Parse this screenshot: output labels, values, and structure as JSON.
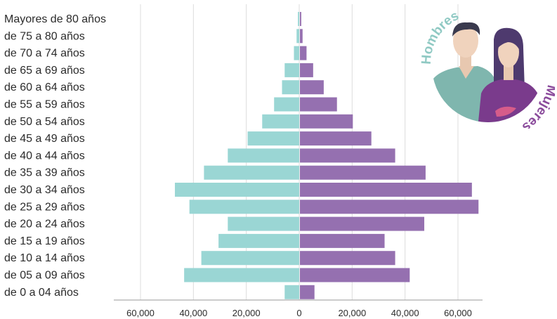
{
  "chart_data": {
    "type": "bar",
    "orientation": "horizontal",
    "layout": "population-pyramid",
    "categories": [
      "Mayores de 80 años",
      "de 75 a 80 años",
      "de 70 a 74 años",
      "de 65 a 69 años",
      "de 60 a 64 años",
      "de 55 a 59 años",
      "de 50 a 54 años",
      "de 45 a 49 años",
      "de 40 a 44 años",
      "de 35 a 39 años",
      "de 30 a 34 años",
      "de 25 a 29 años",
      "de 20 a 24 años",
      "de 15 a 19 años",
      "de 10 a 14 años",
      "de 05 a 09 años",
      "de 0 a 04 años"
    ],
    "series": [
      {
        "name": "Hombres",
        "color": "#9ad6d4",
        "side": "left",
        "values": [
          500,
          1000,
          2000,
          5500,
          6500,
          9500,
          14000,
          19500,
          27000,
          36000,
          47000,
          41500,
          27000,
          30500,
          37000,
          43500,
          5500
        ]
      },
      {
        "name": "Mujeres",
        "color": "#9570b0",
        "side": "right",
        "values": [
          500,
          1000,
          2500,
          5000,
          9000,
          14000,
          20000,
          27000,
          36000,
          47500,
          65000,
          67500,
          47000,
          32000,
          36000,
          41500,
          5500
        ]
      }
    ],
    "x_ticks": [
      "60,000",
      "40,000",
      "20,000",
      "0",
      "20,000",
      "40,000",
      "60,000"
    ],
    "xlim": [
      -70000,
      70000
    ],
    "grid": true
  },
  "badge": {
    "left_label": "Hombres",
    "right_label": "Mujeres",
    "left_color": "#8fc9c3",
    "right_color": "#8a4a9b"
  }
}
